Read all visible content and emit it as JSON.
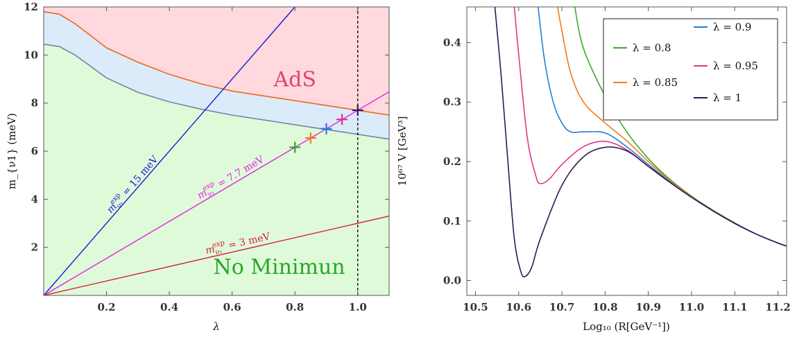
{
  "chart_data": [
    {
      "type": "area",
      "xlabel": "λ",
      "ylabel": "m_{ν1} (meV)",
      "xlim": [
        0,
        1.1
      ],
      "ylim": [
        0,
        12
      ],
      "x_ticks": [
        "0.2",
        "0.4",
        "0.6",
        "0.8",
        "1.0"
      ],
      "y_ticks": [
        "2",
        "4",
        "6",
        "8",
        "10",
        "12"
      ],
      "regions": [
        {
          "label": "AdS",
          "color": "#ffd9dd"
        },
        {
          "label": "",
          "color": "#dcebfa"
        },
        {
          "label": "No Minimun",
          "color": "#dffad9"
        }
      ],
      "curves": [
        {
          "id": "upper",
          "color": "#ea6a1e",
          "x": [
            0,
            0.05,
            0.1,
            0.2,
            0.3,
            0.4,
            0.5,
            0.6,
            0.7,
            0.8,
            0.9,
            1.0,
            1.1
          ],
          "y": [
            11.8,
            11.7,
            11.3,
            10.3,
            9.7,
            9.2,
            8.8,
            8.5,
            8.3,
            8.1,
            7.9,
            7.7,
            7.5
          ]
        },
        {
          "id": "lower",
          "color": "#6c89a4",
          "x": [
            0,
            0.05,
            0.1,
            0.2,
            0.3,
            0.4,
            0.5,
            0.6,
            0.7,
            0.8,
            0.9,
            1.0,
            1.1
          ],
          "y": [
            10.45,
            10.35,
            10.0,
            9.05,
            8.45,
            8.05,
            7.75,
            7.5,
            7.3,
            7.1,
            6.9,
            6.7,
            6.5
          ]
        }
      ],
      "lines": [
        {
          "label_base": "m",
          "label_sub": "ν₁",
          "label_sup": "exp",
          "label_value": " = 15 meV",
          "slope": 15,
          "color": "#1a1ad6",
          "label_at": 0.29
        },
        {
          "label_base": "m",
          "label_sub": "ν₁",
          "label_sup": "exp",
          "label_value": " = 7.7 meV",
          "slope": 7.7,
          "color": "#e61ee6",
          "label_at": 0.6
        },
        {
          "label_base": "m",
          "label_sub": "ν₁",
          "label_sup": "exp",
          "label_value": " = 3 meV",
          "slope": 3,
          "color": "#d6203f",
          "label_at": 0.62
        }
      ],
      "vline": {
        "x": 1.0,
        "style": "dashed",
        "color": "#000000"
      },
      "markers": [
        {
          "x": 0.8,
          "y": 6.16,
          "color": "#2ea82e"
        },
        {
          "x": 0.85,
          "y": 6.55,
          "color": "#f07a1a"
        },
        {
          "x": 0.9,
          "y": 6.93,
          "color": "#1f7fd6"
        },
        {
          "x": 0.95,
          "y": 7.32,
          "color": "#e0358a"
        },
        {
          "x": 1.0,
          "y": 7.7,
          "color": "#2a1a55"
        }
      ],
      "annotations": [
        {
          "text": "AdS",
          "x": 0.8,
          "y": 8.7,
          "color": "#e2456a"
        },
        {
          "text": "No Minimun",
          "x": 0.75,
          "y": 0.9,
          "color": "#2aa52a"
        }
      ]
    },
    {
      "type": "line",
      "xlabel": "Log₁₀ (R[GeV⁻¹])",
      "ylabel": "10⁶⁷ V [GeV³]",
      "xlim": [
        10.48,
        11.22
      ],
      "ylim": [
        -0.025,
        0.46
      ],
      "x_ticks": [
        "10.5",
        "10.6",
        "10.7",
        "10.8",
        "10.9",
        "11.0",
        "11.1",
        "11.2"
      ],
      "y_ticks": [
        "0.0",
        "0.1",
        "0.2",
        "0.3",
        "0.4"
      ],
      "legend_position": "top-right",
      "series": [
        {
          "name": "λ = 0.8",
          "color": "#3aa82a",
          "x": [
            10.73,
            10.75,
            10.8,
            10.85,
            10.9,
            10.95,
            11.0,
            11.05,
            11.1,
            11.15,
            11.2,
            11.22
          ],
          "y": [
            0.46,
            0.39,
            0.31,
            0.25,
            0.205,
            0.17,
            0.142,
            0.118,
            0.097,
            0.078,
            0.063,
            0.058
          ]
        },
        {
          "name": "λ = 0.85",
          "color": "#f07a1a",
          "x": [
            10.69,
            10.7,
            10.72,
            10.75,
            10.8,
            10.85,
            10.9,
            10.95,
            11.0,
            11.05,
            11.1,
            11.15,
            11.2,
            11.22
          ],
          "y": [
            0.46,
            0.42,
            0.35,
            0.3,
            0.265,
            0.235,
            0.2,
            0.168,
            0.141,
            0.117,
            0.096,
            0.078,
            0.063,
            0.058
          ]
        },
        {
          "name": "λ = 0.9",
          "color": "#1f7fd6",
          "x": [
            10.645,
            10.66,
            10.68,
            10.7,
            10.72,
            10.75,
            10.8,
            10.85,
            10.9,
            10.95,
            11.0,
            11.05,
            11.1,
            11.15,
            11.2,
            11.22
          ],
          "y": [
            0.46,
            0.37,
            0.3,
            0.265,
            0.25,
            0.25,
            0.248,
            0.225,
            0.195,
            0.166,
            0.14,
            0.117,
            0.096,
            0.078,
            0.063,
            0.058
          ]
        },
        {
          "name": "λ = 0.95",
          "color": "#e0358a",
          "x": [
            10.59,
            10.6,
            10.62,
            10.64,
            10.65,
            10.67,
            10.7,
            10.75,
            10.8,
            10.85,
            10.9,
            10.95,
            11.0,
            11.05,
            11.1,
            11.15,
            11.2,
            11.22
          ],
          "y": [
            0.46,
            0.38,
            0.24,
            0.175,
            0.163,
            0.17,
            0.195,
            0.225,
            0.234,
            0.22,
            0.192,
            0.165,
            0.14,
            0.117,
            0.096,
            0.078,
            0.063,
            0.058
          ]
        },
        {
          "name": "λ = 1",
          "color": "#2a1a55",
          "x": [
            10.545,
            10.56,
            10.575,
            10.59,
            10.605,
            10.615,
            10.63,
            10.65,
            10.7,
            10.75,
            10.8,
            10.85,
            10.9,
            10.95,
            11.0,
            11.05,
            11.1,
            11.15,
            11.2,
            11.22
          ],
          "y": [
            0.46,
            0.34,
            0.2,
            0.07,
            0.015,
            0.007,
            0.022,
            0.07,
            0.16,
            0.208,
            0.224,
            0.218,
            0.192,
            0.165,
            0.14,
            0.117,
            0.096,
            0.078,
            0.063,
            0.058
          ]
        }
      ]
    }
  ]
}
